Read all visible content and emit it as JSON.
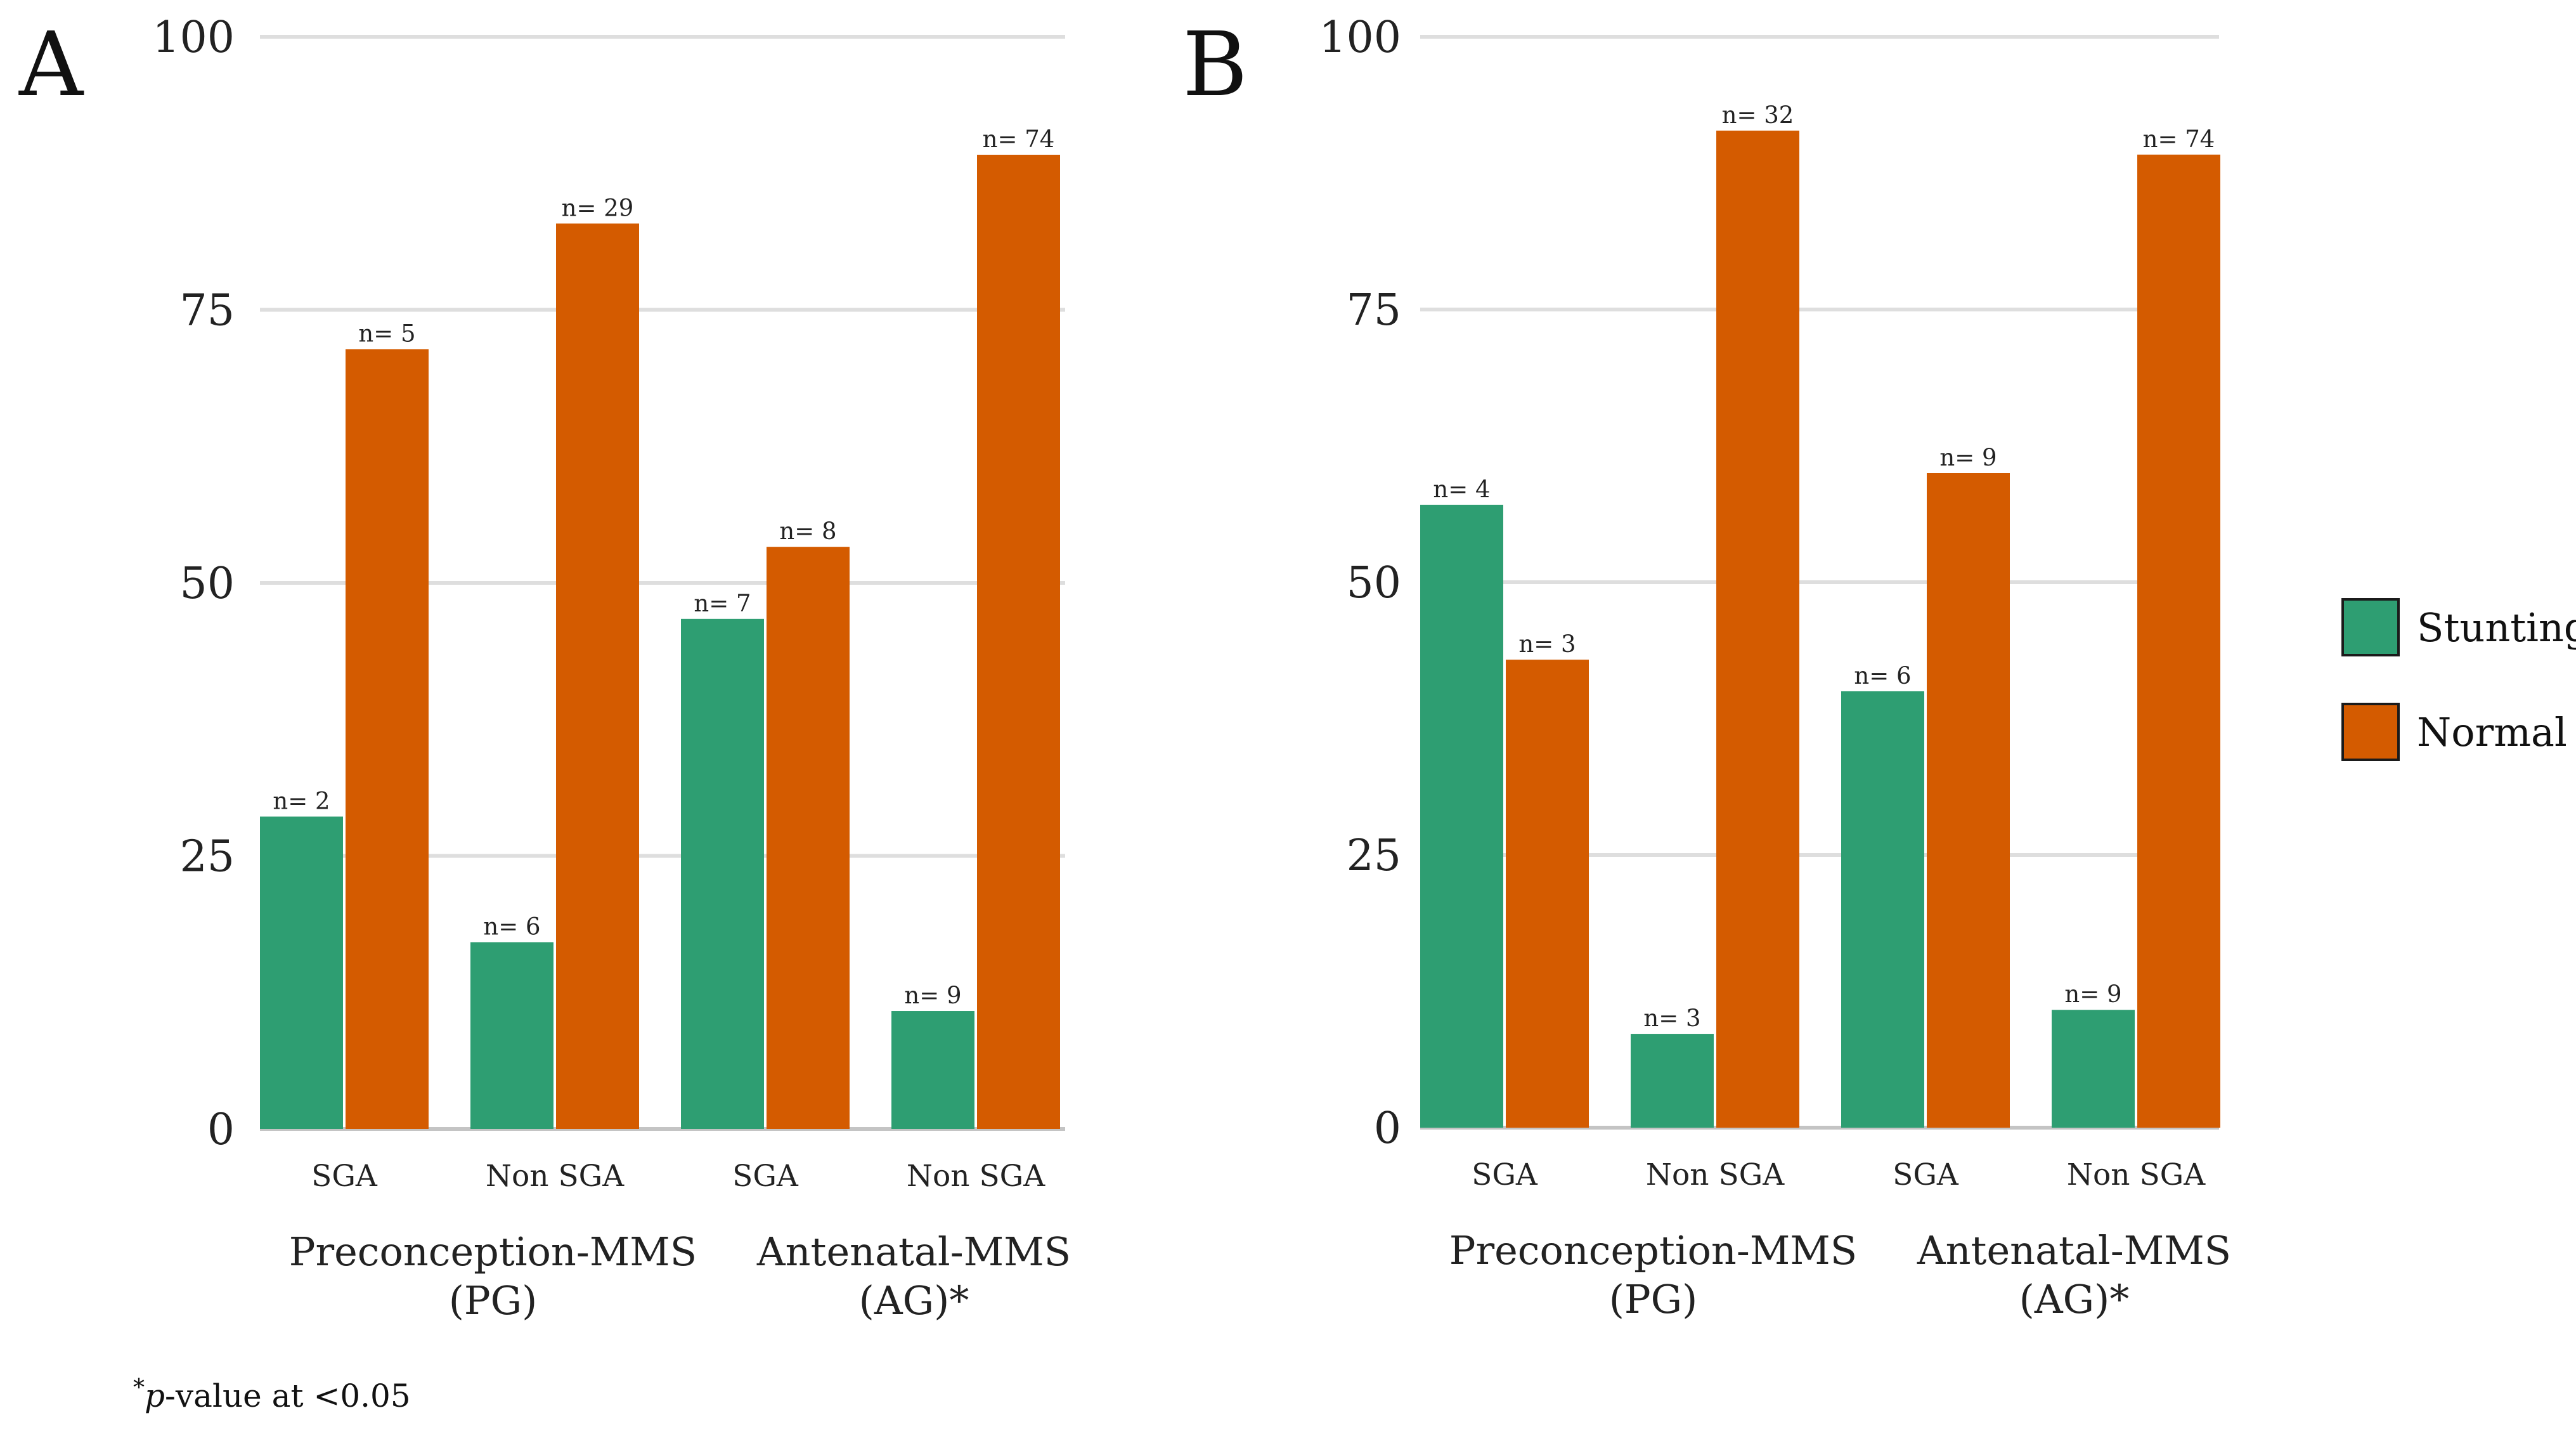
{
  "colors": {
    "stunting": "#2e9e72",
    "normal": "#d45b00"
  },
  "legend": {
    "items": [
      {
        "key": "stunting",
        "label": "Stunting"
      },
      {
        "key": "normal",
        "label": "Normal"
      }
    ]
  },
  "footnote": {
    "star": "*",
    "p": "p",
    "rest": "-value at <0.05"
  },
  "chart_data": [
    {
      "type": "bar",
      "panel_label": "A",
      "ylim": [
        0,
        100
      ],
      "yticks": [
        "0",
        "25",
        "50",
        "75",
        "100"
      ],
      "categories": [
        "SGA",
        "Non SGA",
        "SGA",
        "Non SGA"
      ],
      "groups": [
        {
          "label_line1": "Preconception-MMS",
          "label_line2": "(PG)"
        },
        {
          "label_line1": "Antenatal-MMS",
          "label_line2": "(AG)*"
        }
      ],
      "series": [
        {
          "name": "Stunting",
          "values": [
            28.6,
            17.1,
            46.7,
            10.8
          ],
          "labels": [
            "n= 2",
            "n= 6",
            "n= 7",
            "n= 9"
          ]
        },
        {
          "name": "Normal",
          "values": [
            71.4,
            82.9,
            53.3,
            89.2
          ],
          "labels": [
            "n= 5",
            "n= 29",
            "n= 8",
            "n= 74"
          ]
        }
      ]
    },
    {
      "type": "bar",
      "panel_label": "B",
      "ylim": [
        0,
        100
      ],
      "yticks": [
        "0",
        "25",
        "50",
        "75",
        "100"
      ],
      "categories": [
        "SGA",
        "Non SGA",
        "SGA",
        "Non SGA"
      ],
      "groups": [
        {
          "label_line1": "Preconception-MMS",
          "label_line2": "(PG)"
        },
        {
          "label_line1": "Antenatal-MMS",
          "label_line2": "(AG)*"
        }
      ],
      "series": [
        {
          "name": "Stunting",
          "values": [
            57.1,
            8.6,
            40.0,
            10.8
          ],
          "labels": [
            "n= 4",
            "n= 3",
            "n= 6",
            "n= 9"
          ]
        },
        {
          "name": "Normal",
          "values": [
            42.9,
            91.4,
            60.0,
            89.2
          ],
          "labels": [
            "n= 3",
            "n= 32",
            "n= 9",
            "n= 74"
          ]
        }
      ]
    }
  ]
}
